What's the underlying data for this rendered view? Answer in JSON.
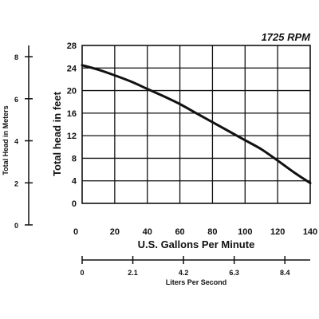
{
  "chart_data": {
    "type": "line",
    "title": "1725 RPM",
    "xlabel": "U.S. Gallons Per Minute",
    "ylabel": "Total head in feet",
    "xlim": [
      0,
      140
    ],
    "ylim": [
      0,
      28
    ],
    "xticks": [
      0,
      20,
      40,
      60,
      80,
      100,
      120,
      140
    ],
    "yticks": [
      0,
      4,
      8,
      12,
      16,
      20,
      24,
      28
    ],
    "grid": true,
    "series": [
      {
        "x": [
          0,
          10,
          20,
          30,
          40,
          50,
          60,
          70,
          80,
          90,
          100,
          110,
          120,
          130,
          140
        ],
        "y": [
          24.5,
          23.7,
          22.7,
          21.6,
          20.3,
          19.0,
          17.6,
          16.0,
          14.4,
          12.8,
          11.2,
          9.6,
          7.6,
          5.5,
          3.6
        ]
      }
    ],
    "secondary_x": {
      "label": "Liters Per Second",
      "ticks": [
        {
          "value": 0,
          "label": "0"
        },
        {
          "value": 2.1,
          "label": "2.1"
        },
        {
          "value": 4.2,
          "label": "4.2"
        },
        {
          "value": 6.3,
          "label": "6.3"
        },
        {
          "value": 8.4,
          "label": "8.4"
        }
      ],
      "max": 9.45
    },
    "secondary_y": {
      "label": "Total Head in Meters",
      "ticks": [
        {
          "value": 0,
          "label": "0"
        },
        {
          "value": 2,
          "label": "2"
        },
        {
          "value": 4,
          "label": "4"
        },
        {
          "value": 6,
          "label": "6"
        },
        {
          "value": 8,
          "label": "8"
        }
      ],
      "max": 8.534
    },
    "colors": {
      "line": "#111111",
      "grid": "#111111",
      "background": "#ffffff"
    }
  }
}
